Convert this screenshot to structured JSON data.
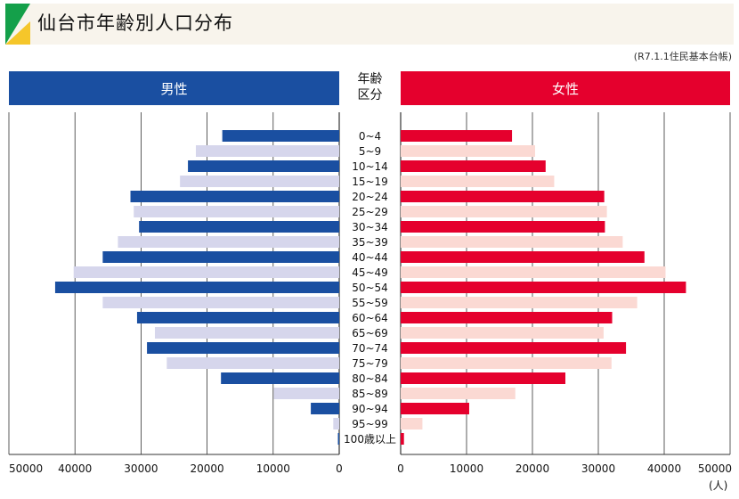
{
  "title": "仙台市年齢別人口分布",
  "source": "(R7.1.1住民基本台帳)",
  "headers": {
    "male": "男性",
    "age": "年齢\n区分",
    "female": "女性"
  },
  "unit": "(人)",
  "colors": {
    "male_dark": "#1a4fa1",
    "male_light": "#d6d6ec",
    "female_dark": "#e5002d",
    "female_light": "#fbd9d3",
    "title_bg": "#f8f4ec",
    "logo_green": "#14a04a",
    "logo_yellow": "#f5c62a"
  },
  "chart_data": {
    "type": "bar",
    "orientation": "horizontal-population-pyramid",
    "categories": [
      "0~4",
      "5~9",
      "10~14",
      "15~19",
      "20~24",
      "25~29",
      "30~34",
      "35~39",
      "40~44",
      "45~49",
      "50~54",
      "55~59",
      "60~64",
      "65~69",
      "70~74",
      "75~79",
      "80~84",
      "85~89",
      "90~94",
      "95~99",
      "100歳以上"
    ],
    "series": [
      {
        "name": "男性",
        "values": [
          17700,
          21700,
          22900,
          24100,
          31600,
          31100,
          30300,
          33500,
          35800,
          40200,
          43000,
          35800,
          30600,
          27900,
          29100,
          26100,
          17900,
          9900,
          4300,
          900,
          200
        ]
      },
      {
        "name": "女性",
        "values": [
          16900,
          20400,
          22000,
          23300,
          30900,
          31300,
          31000,
          33700,
          37000,
          40200,
          43300,
          35900,
          32100,
          30800,
          34200,
          32000,
          25000,
          17400,
          10400,
          3300,
          500
        ]
      }
    ],
    "xlim": [
      0,
      50000
    ],
    "ticks": [
      "50000",
      "40000",
      "30000",
      "20000",
      "10000",
      "0",
      "0",
      "10000",
      "20000",
      "30000",
      "40000",
      "50000"
    ],
    "grid": true
  }
}
